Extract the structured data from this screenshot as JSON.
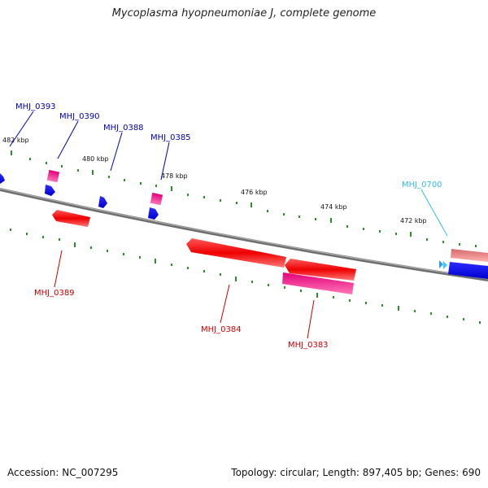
{
  "title": "Mycoplasma hyopneumoniae J, complete genome",
  "footer": {
    "accession": "Accession: NC_007295",
    "summary": "Topology: circular; Length: 897,405 bp; Genes: 690"
  },
  "tick_labels": [
    "482 kbp",
    "480 kbp",
    "478 kbp",
    "476 kbp",
    "474 kbp",
    "472 kbp"
  ],
  "gene_labels": [
    "MHJ_0393",
    "MHJ_0390",
    "MHJ_0388",
    "MHJ_0385",
    "MHJ_0700",
    "MHJ_0389",
    "MHJ_0384",
    "MHJ_0383"
  ],
  "colors": {
    "backbone": "#808080",
    "tick": "#2e8b2e",
    "forward_cds": "#0000ee",
    "forward_other": "#e0307a",
    "reverse_cds": "#ee0000",
    "reverse_other": "#e8308a",
    "label_blue": "#0000aa",
    "label_red": "#cc0000",
    "label_cyan": "#33bbee"
  }
}
